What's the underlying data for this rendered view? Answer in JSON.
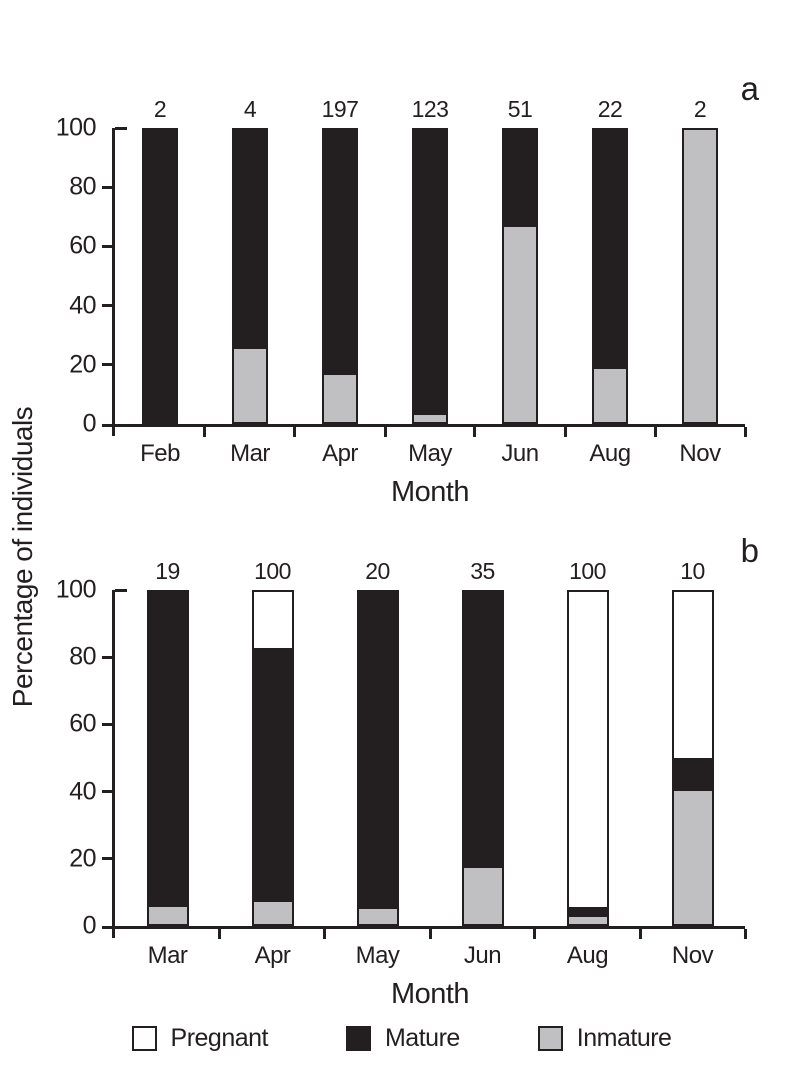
{
  "figure": {
    "ylabel_shared": "Percentage of individuals",
    "colors": {
      "pregnant": "#ffffff",
      "mature": "#231f20",
      "inmature": "#c0c0c2",
      "axis": "#231f20"
    },
    "legend": [
      {
        "label": "Pregnant",
        "color_key": "pregnant"
      },
      {
        "label": "Mature",
        "color_key": "mature"
      },
      {
        "label": "Inmature",
        "color_key": "inmature"
      }
    ]
  },
  "chart_data": [
    {
      "type": "bar",
      "stacked": true,
      "panel_label": "a",
      "title": "",
      "xlabel": "Month",
      "ylabel": "Percentage of individuals",
      "ylim": [
        0,
        100
      ],
      "yticks": [
        0,
        20,
        40,
        60,
        80,
        100
      ],
      "grid": false,
      "categories": [
        "Feb",
        "Mar",
        "Apr",
        "May",
        "Jun",
        "Aug",
        "Nov"
      ],
      "counts": [
        2,
        4,
        197,
        123,
        51,
        22,
        2
      ],
      "series": [
        {
          "name": "Pregnant",
          "color_key": "pregnant",
          "values": [
            0,
            0,
            0,
            0,
            0,
            0,
            0
          ]
        },
        {
          "name": "Mature",
          "color_key": "mature",
          "values": [
            100,
            75,
            84,
            97.6,
            33.3,
            82,
            0
          ]
        },
        {
          "name": "Inmature",
          "color_key": "inmature",
          "values": [
            0,
            25,
            16,
            2.4,
            66.7,
            18,
            100
          ]
        }
      ]
    },
    {
      "type": "bar",
      "stacked": true,
      "panel_label": "b",
      "title": "",
      "xlabel": "Month",
      "ylabel": "Percentage of individuals",
      "ylim": [
        0,
        100
      ],
      "yticks": [
        0,
        20,
        40,
        60,
        80,
        100
      ],
      "grid": false,
      "categories": [
        "Mar",
        "Apr",
        "May",
        "Jun",
        "Aug",
        "Nov"
      ],
      "counts": [
        19,
        100,
        20,
        35,
        100,
        10
      ],
      "series": [
        {
          "name": "Pregnant",
          "color_key": "pregnant",
          "values": [
            0,
            17,
            0,
            0,
            95,
            50
          ]
        },
        {
          "name": "Mature",
          "color_key": "mature",
          "values": [
            95,
            76.5,
            95.5,
            83,
            3,
            10
          ]
        },
        {
          "name": "Inmature",
          "color_key": "inmature",
          "values": [
            5,
            6.5,
            4.5,
            17,
            2,
            40
          ]
        }
      ]
    }
  ],
  "legend_position": "bottom"
}
